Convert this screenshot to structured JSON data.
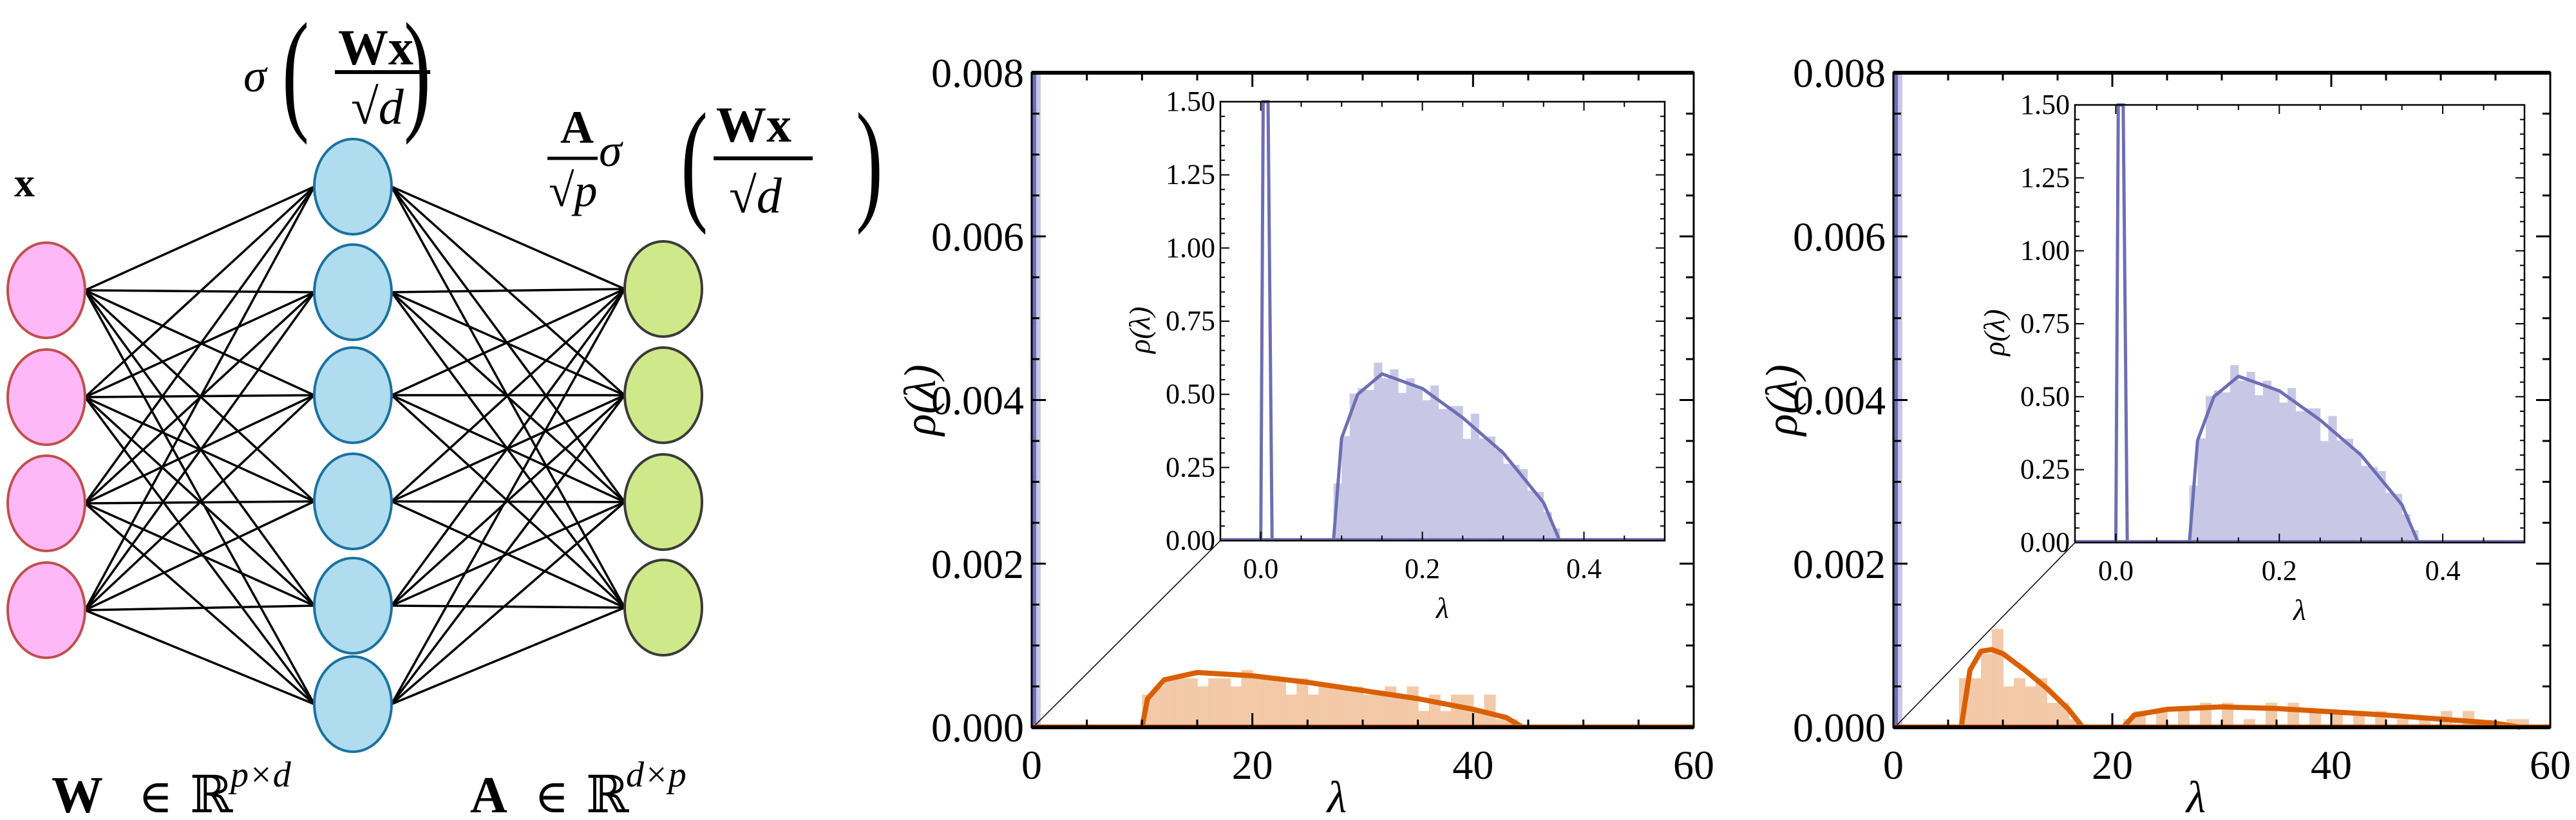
{
  "diagram": {
    "input_label": "x",
    "hidden_label": {
      "prefix": "σ",
      "numerator": "Wx",
      "denominator": "√d"
    },
    "output_label": {
      "A": "A",
      "A_denom": "√p",
      "sigma": "σ",
      "numerator": "Wx",
      "denominator": "√d"
    },
    "weight_W_label": {
      "symbol": "W",
      "rel": "∈",
      "space": "ℝ",
      "dims": "p×d"
    },
    "weight_A_label": {
      "symbol": "A",
      "rel": "∈",
      "space": "ℝ",
      "dims": "d×p"
    },
    "layers": [
      {
        "name": "input",
        "count": 4,
        "fill": "#ffb8f7",
        "stroke": "#c0504d"
      },
      {
        "name": "hidden",
        "count": 6,
        "fill": "#b0dcef",
        "stroke": "#1a72a0"
      },
      {
        "name": "output",
        "count": 4,
        "fill": "#cfe88a",
        "stroke": "#3a3a3a"
      }
    ]
  },
  "chart_data": [
    {
      "type": "bar",
      "panel": "left",
      "xlabel": "λ",
      "ylabel": "ρ(λ)",
      "xlim": [
        0,
        60
      ],
      "ylim": [
        0,
        0.008
      ],
      "xticks": [
        "0",
        "20",
        "40",
        "60"
      ],
      "yticks": [
        "0.000",
        "0.002",
        "0.004",
        "0.006",
        "0.008"
      ],
      "series": [
        {
          "name": "bulk histogram (small λ)",
          "color": "#c8c8e6",
          "x_range": [
            0,
            0.5
          ]
        },
        {
          "name": "bulk theory (small λ)",
          "color": "#6e6eb4"
        },
        {
          "name": "spike histogram",
          "color": "#f2c4a0",
          "x": [
            10,
            11,
            12,
            13,
            14,
            15,
            16,
            17,
            18,
            19,
            20,
            21,
            22,
            23,
            24,
            25,
            26,
            27,
            28,
            29,
            30,
            31,
            32,
            33,
            34,
            35,
            36,
            37,
            38,
            39,
            40,
            41,
            42,
            43
          ],
          "values": [
            0.0004,
            0.0005,
            0.0006,
            0.0006,
            0.0006,
            0.0005,
            0.0006,
            0.0006,
            0.0005,
            0.0007,
            0.0006,
            0.0006,
            0.0006,
            0.0004,
            0.0006,
            0.0004,
            0.0005,
            0.0005,
            0.0005,
            0.0005,
            0.0004,
            0.0004,
            0.0005,
            0.0004,
            0.0005,
            0.0002,
            0.0004,
            0.0002,
            0.0004,
            0.0004,
            0.0002,
            0.0004,
            0.0001,
            0.0001
          ]
        },
        {
          "name": "spike theory",
          "color": "#d95f02",
          "x": [
            10,
            10.5,
            12,
            15,
            20,
            25,
            30,
            35,
            40,
            43,
            44.5
          ],
          "values": [
            0,
            0.00035,
            0.00058,
            0.00067,
            0.00063,
            0.00055,
            0.00045,
            0.00035,
            0.00022,
            0.00012,
            0
          ]
        }
      ],
      "inset": {
        "xlabel": "λ",
        "ylabel": "ρ(λ)",
        "xlim": [
          -0.05,
          0.5
        ],
        "ylim": [
          0,
          1.5
        ],
        "xticks": [
          "0.0",
          "0.2",
          "0.4"
        ],
        "yticks": [
          "0.00",
          "0.25",
          "0.50",
          "0.75",
          "1.00",
          "1.25",
          "1.50"
        ],
        "theory": {
          "x": [
            0.09,
            0.1,
            0.12,
            0.15,
            0.2,
            0.25,
            0.3,
            0.35,
            0.37
          ],
          "values": [
            0,
            0.35,
            0.5,
            0.57,
            0.52,
            0.42,
            0.3,
            0.13,
            0
          ]
        },
        "spike_near_zero": {
          "x": 0.005,
          "value": "above 1.50"
        }
      }
    },
    {
      "type": "bar",
      "panel": "right",
      "xlabel": "λ",
      "ylabel": "ρ(λ)",
      "xlim": [
        0,
        60
      ],
      "ylim": [
        0,
        0.008
      ],
      "xticks": [
        "0",
        "20",
        "40",
        "60"
      ],
      "yticks": [
        "0.000",
        "0.002",
        "0.004",
        "0.006",
        "0.008"
      ],
      "series": [
        {
          "name": "bulk histogram (small λ)",
          "color": "#c8c8e6",
          "x_range": [
            0,
            0.5
          ]
        },
        {
          "name": "first spike histogram",
          "color": "#f2c4a0",
          "x": [
            6,
            7,
            8,
            9,
            10,
            11,
            12,
            13,
            14,
            15,
            16
          ],
          "values": [
            0.0006,
            0.0006,
            0.0009,
            0.0012,
            0.0005,
            0.0006,
            0.0005,
            0.0006,
            0.0003,
            0.0003,
            0.0001
          ]
        },
        {
          "name": "first spike theory",
          "color": "#d95f02",
          "x": [
            6.2,
            7,
            8,
            9,
            10,
            12,
            14,
            16,
            17.3
          ],
          "values": [
            0,
            0.0007,
            0.00093,
            0.00095,
            0.0009,
            0.0007,
            0.00048,
            0.00022,
            0
          ]
        },
        {
          "name": "second spike histogram",
          "color": "#f2c4a0",
          "x": [
            21,
            22,
            24,
            26,
            28,
            30,
            32,
            34,
            36,
            38,
            40,
            42,
            44,
            46,
            48,
            50,
            52,
            54,
            56,
            57
          ],
          "values": [
            0.0001,
            0.0002,
            0.0002,
            0.0002,
            0.0003,
            0.0003,
            0.0001,
            0.0003,
            0.0003,
            0.0002,
            0.0002,
            0.0002,
            0.0002,
            0.0001,
            0.0001,
            0.0002,
            0.0002,
            0.0,
            0.0001,
            0.0001
          ]
        },
        {
          "name": "second spike theory",
          "color": "#d95f02",
          "x": [
            21,
            22,
            25,
            30,
            35,
            40,
            45,
            50,
            55,
            57.3
          ],
          "values": [
            0,
            0.00015,
            0.00022,
            0.00025,
            0.00023,
            0.00019,
            0.00015,
            0.0001,
            5e-05,
            0
          ]
        }
      ],
      "inset": {
        "xlabel": "λ",
        "ylabel": "ρ(λ)",
        "xlim": [
          -0.05,
          0.5
        ],
        "ylim": [
          0,
          1.5
        ],
        "xticks": [
          "0.0",
          "0.2",
          "0.4"
        ],
        "yticks": [
          "0.00",
          "0.25",
          "0.50",
          "0.75",
          "1.00",
          "1.25",
          "1.50"
        ],
        "theory": {
          "x": [
            0.09,
            0.1,
            0.12,
            0.15,
            0.2,
            0.25,
            0.3,
            0.35,
            0.37
          ],
          "values": [
            0,
            0.35,
            0.5,
            0.57,
            0.52,
            0.42,
            0.3,
            0.13,
            0
          ]
        },
        "spike_near_zero": {
          "x": 0.005,
          "value": 1.5
        }
      }
    }
  ]
}
